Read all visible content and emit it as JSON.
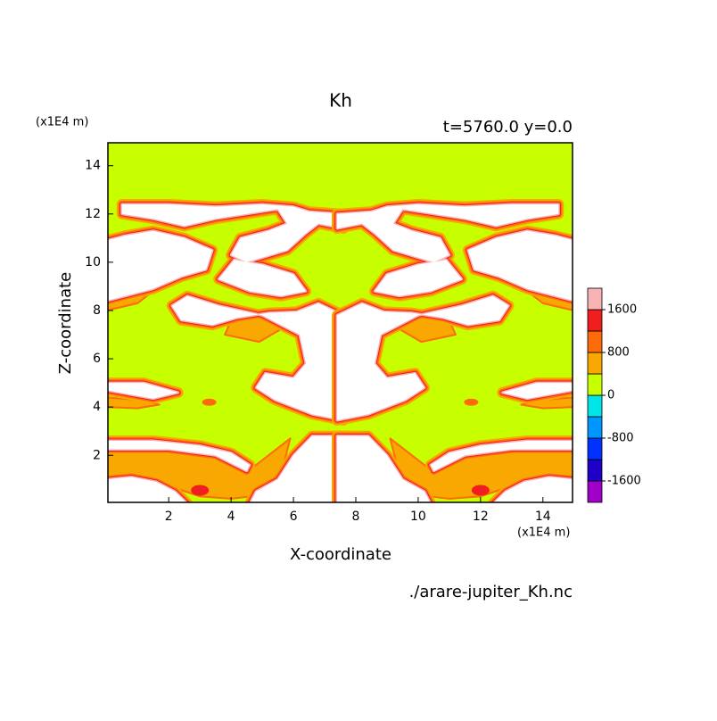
{
  "chart_data": {
    "type": "contour",
    "title": "Kh",
    "subtitle": "t=5760.0 y=0.0",
    "x_label": "X-coordinate",
    "y_label": "Z-coordinate",
    "x_unit": "(x1E4 m)",
    "y_unit": "(x1E4 m)",
    "source": "./arare-jupiter_Kh.nc",
    "xlim": [
      0.05,
      14.95
    ],
    "ylim": [
      0.05,
      14.95
    ],
    "xticks": [
      2,
      4,
      6,
      8,
      10,
      12,
      14
    ],
    "yticks": [
      2,
      4,
      6,
      8,
      10,
      12,
      14
    ],
    "levels": [
      -1600,
      -1200,
      -800,
      -400,
      0,
      400,
      800,
      1200,
      1600
    ],
    "colors": [
      "#a000c8",
      "#1e00c8",
      "#0032ff",
      "#0096ff",
      "#00e6e6",
      "#c8ff00",
      "#f8a800",
      "#ff6a0a",
      "#f01e1e",
      "#f8b4b4"
    ],
    "over_color": "#ffffff",
    "colorbar_ticks": [
      1600,
      800,
      0,
      -800,
      -1600
    ]
  }
}
